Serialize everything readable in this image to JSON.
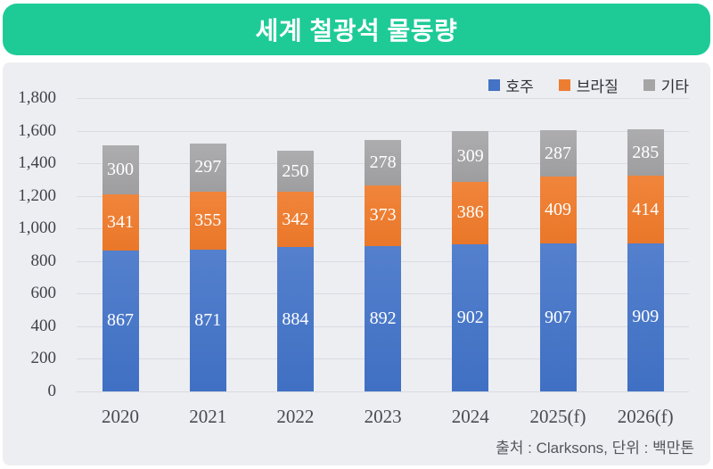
{
  "title": "세계 철광석 물동량",
  "source_note": "출처 : Clarksons, 단위 : 백만톤",
  "colors": {
    "header_bg": "#1ecb97",
    "panel_bg": "#edeef2",
    "gridline": "#d9dbe1",
    "axis_text": "#46464e",
    "value_text": "#ffffff",
    "australia": "#4472c4",
    "brazil": "#ed7d31",
    "others": "#a5a5a5"
  },
  "chart_data": {
    "type": "bar",
    "stacked": true,
    "title": "세계 철광석 물동량",
    "unit": "백만톤",
    "categories": [
      "2020",
      "2021",
      "2022",
      "2023",
      "2024",
      "2025(f)",
      "2026(f)"
    ],
    "series": [
      {
        "name": "호주",
        "color": "#4472c4",
        "values": [
          867,
          871,
          884,
          892,
          902,
          907,
          909
        ]
      },
      {
        "name": "브라질",
        "color": "#ed7d31",
        "values": [
          341,
          355,
          342,
          373,
          386,
          409,
          414
        ]
      },
      {
        "name": "기타",
        "color": "#a5a5a5",
        "values": [
          300,
          297,
          250,
          278,
          309,
          287,
          285
        ]
      }
    ],
    "ylim": [
      0,
      1800
    ],
    "ytick_step": 200,
    "yticks": [
      "0",
      "200",
      "400",
      "600",
      "800",
      "1,000",
      "1,200",
      "1,400",
      "1,600",
      "1,800"
    ],
    "grid": true,
    "legend_position": "top-right"
  }
}
